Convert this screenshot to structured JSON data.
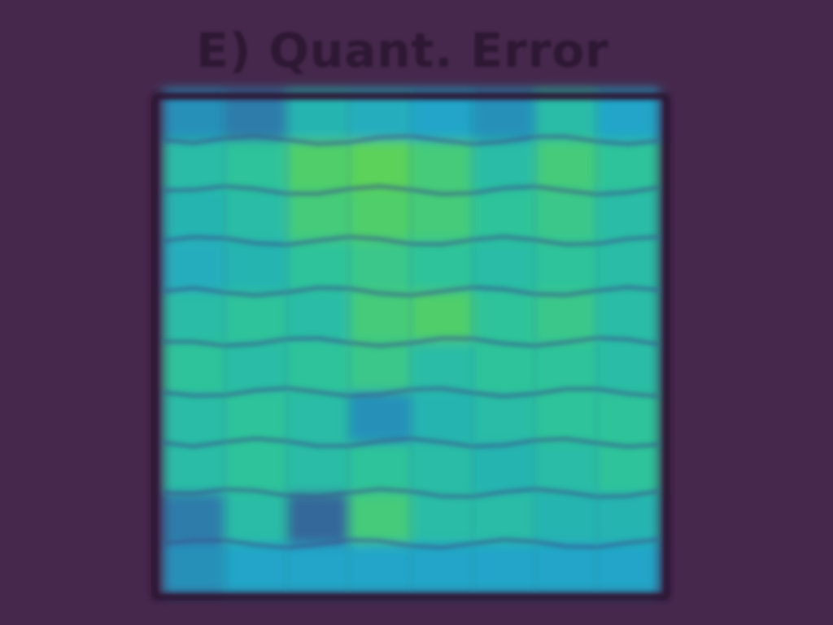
{
  "chart_data": {
    "type": "heatmap",
    "title": "E) Quant. Error",
    "rows": 10,
    "cols": 8,
    "colormap": [
      "#440154",
      "#3b528b",
      "#21a5c8",
      "#2fc39a",
      "#5bd25a",
      "#c6e43a"
    ],
    "values": [
      [
        0.35,
        0.3,
        0.5,
        0.45,
        0.4,
        0.35,
        0.55,
        0.4
      ],
      [
        0.55,
        0.6,
        0.75,
        0.8,
        0.7,
        0.55,
        0.7,
        0.6
      ],
      [
        0.5,
        0.55,
        0.7,
        0.75,
        0.7,
        0.6,
        0.65,
        0.55
      ],
      [
        0.45,
        0.5,
        0.6,
        0.65,
        0.6,
        0.55,
        0.6,
        0.55
      ],
      [
        0.55,
        0.6,
        0.55,
        0.7,
        0.75,
        0.6,
        0.65,
        0.55
      ],
      [
        0.6,
        0.55,
        0.6,
        0.65,
        0.55,
        0.6,
        0.6,
        0.55
      ],
      [
        0.55,
        0.6,
        0.55,
        0.35,
        0.5,
        0.55,
        0.6,
        0.6
      ],
      [
        0.55,
        0.6,
        0.55,
        0.6,
        0.55,
        0.5,
        0.55,
        0.6
      ],
      [
        0.3,
        0.55,
        0.25,
        0.7,
        0.55,
        0.55,
        0.5,
        0.5
      ],
      [
        0.35,
        0.4,
        0.4,
        0.4,
        0.4,
        0.4,
        0.4,
        0.4
      ]
    ]
  }
}
